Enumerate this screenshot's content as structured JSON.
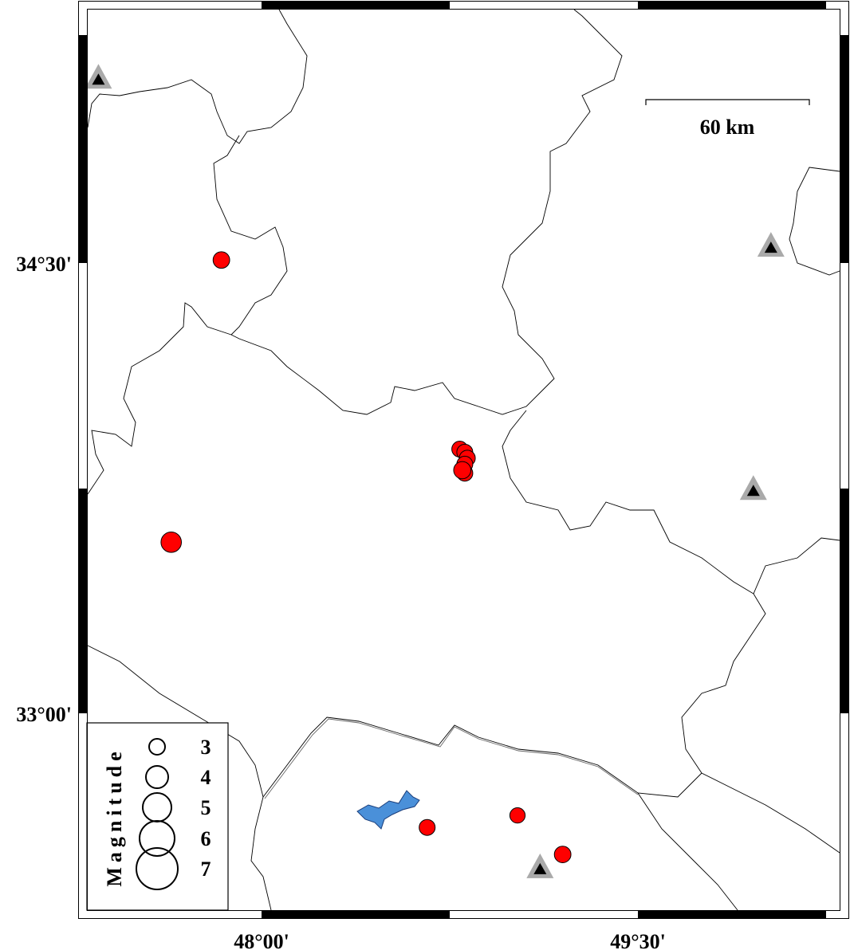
{
  "map": {
    "frame": {
      "lon_labels": [
        "48°00'",
        "49°30'"
      ],
      "lat_labels": [
        "34°30'",
        "33°00'"
      ]
    },
    "scale_bar": {
      "label": "60 km"
    },
    "legend": {
      "title": "Magnitude",
      "magnitudes": [
        "3",
        "4",
        "5",
        "6",
        "7"
      ]
    },
    "colors": {
      "event_fill": "#ff0000",
      "station_outer": "#aaaaaa",
      "station_inner": "#000000",
      "lake": "#4a90d9",
      "boundary": "#000000"
    },
    "events": [
      {
        "lon": 47.84,
        "lat": 34.51,
        "mag": 3.1
      },
      {
        "lon": 47.64,
        "lat": 33.57,
        "mag": 3.7
      },
      {
        "lon": 48.79,
        "lat": 33.88,
        "mag": 3.0
      },
      {
        "lon": 48.81,
        "lat": 33.87,
        "mag": 3.0
      },
      {
        "lon": 48.82,
        "lat": 33.85,
        "mag": 3.0
      },
      {
        "lon": 48.81,
        "lat": 33.83,
        "mag": 3.0
      },
      {
        "lon": 48.81,
        "lat": 33.8,
        "mag": 3.0
      },
      {
        "lon": 48.8,
        "lat": 33.81,
        "mag": 3.2
      },
      {
        "lon": 48.66,
        "lat": 32.62,
        "mag": 3.0
      },
      {
        "lon": 49.02,
        "lat": 32.66,
        "mag": 2.9
      },
      {
        "lon": 49.2,
        "lat": 32.53,
        "mag": 3.1
      }
    ],
    "stations": [
      {
        "lon": 47.35,
        "lat": 35.11
      },
      {
        "lon": 50.03,
        "lat": 34.55
      },
      {
        "lon": 49.96,
        "lat": 33.74
      },
      {
        "lon": 49.11,
        "lat": 32.48
      }
    ]
  }
}
